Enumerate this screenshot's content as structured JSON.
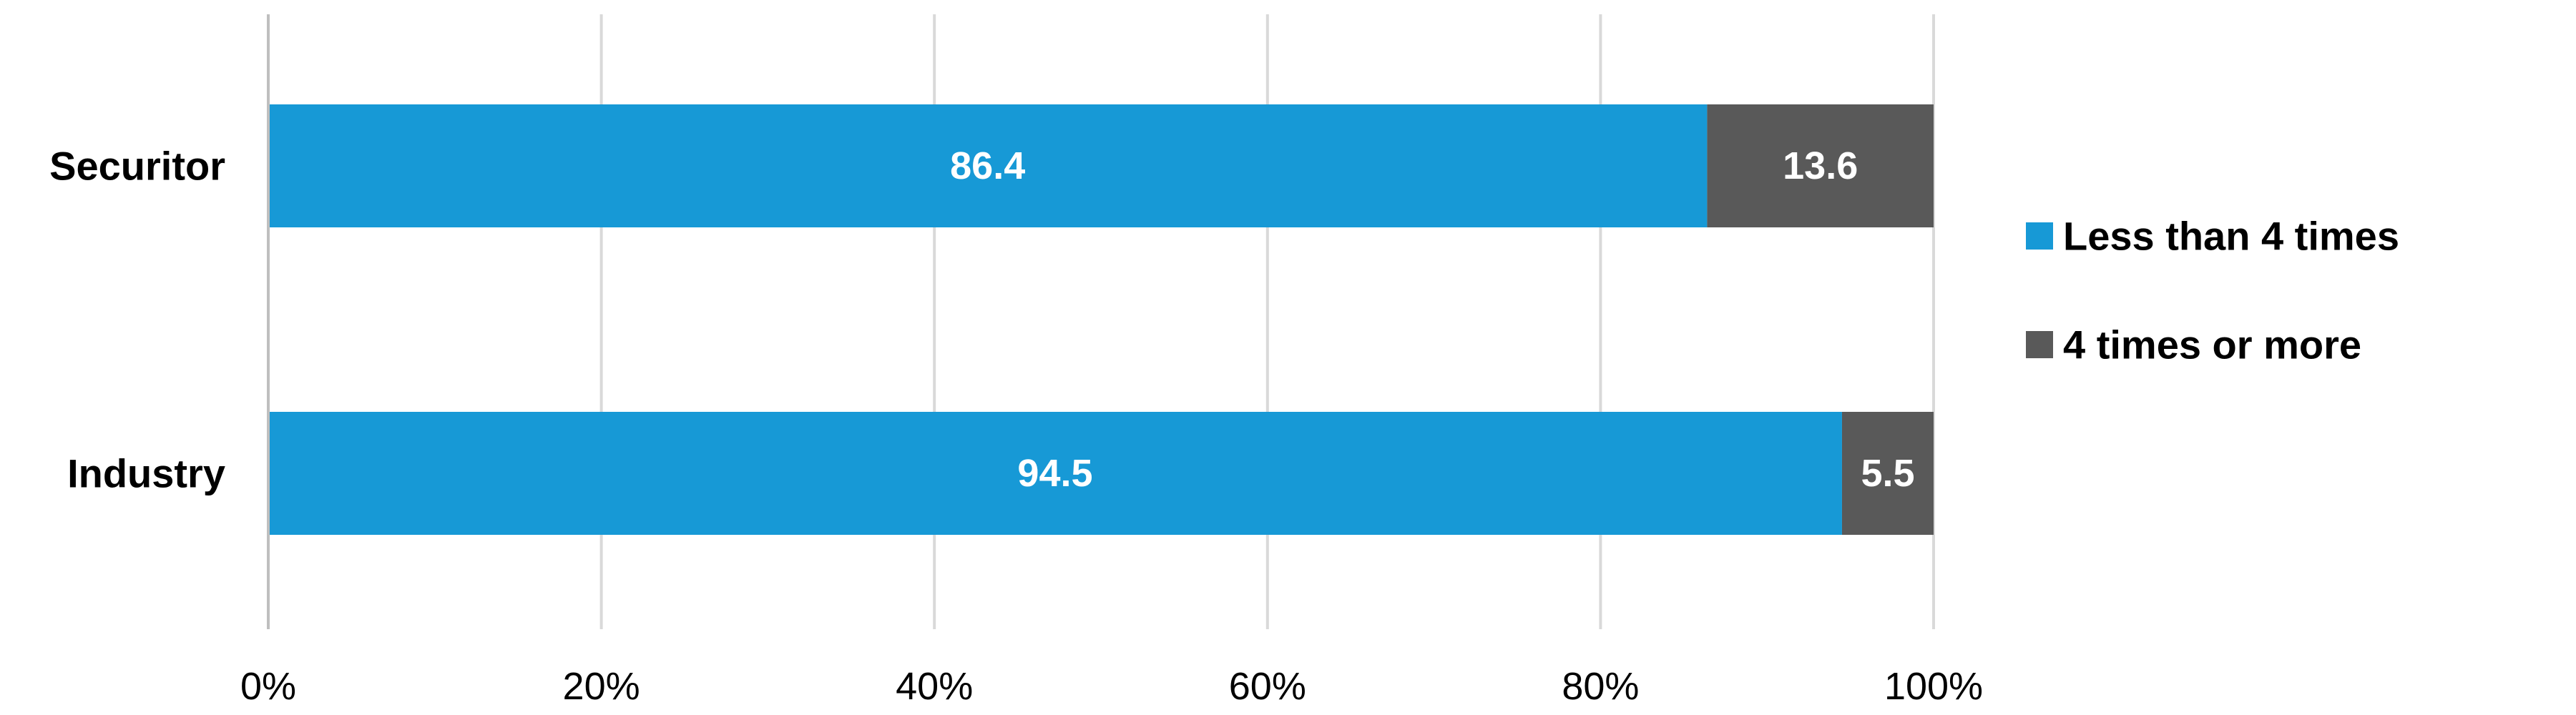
{
  "chart_data": {
    "type": "bar",
    "orientation": "horizontal",
    "stacked": "percent",
    "categories": [
      "Securitor",
      "Industry"
    ],
    "series": [
      {
        "name": "Less than 4 times",
        "values": [
          86.4,
          94.5
        ],
        "color": "#1799D6"
      },
      {
        "name": "4 times or more",
        "values": [
          13.6,
          5.5
        ],
        "color": "#595959"
      }
    ],
    "x_ticks": [
      "0%",
      "20%",
      "40%",
      "60%",
      "80%",
      "100%"
    ],
    "xlim": [
      0,
      100
    ],
    "grid": true,
    "gridline_color": "#D9D9D9",
    "axis_color": "#BFBFBF",
    "legend_position": "right"
  }
}
